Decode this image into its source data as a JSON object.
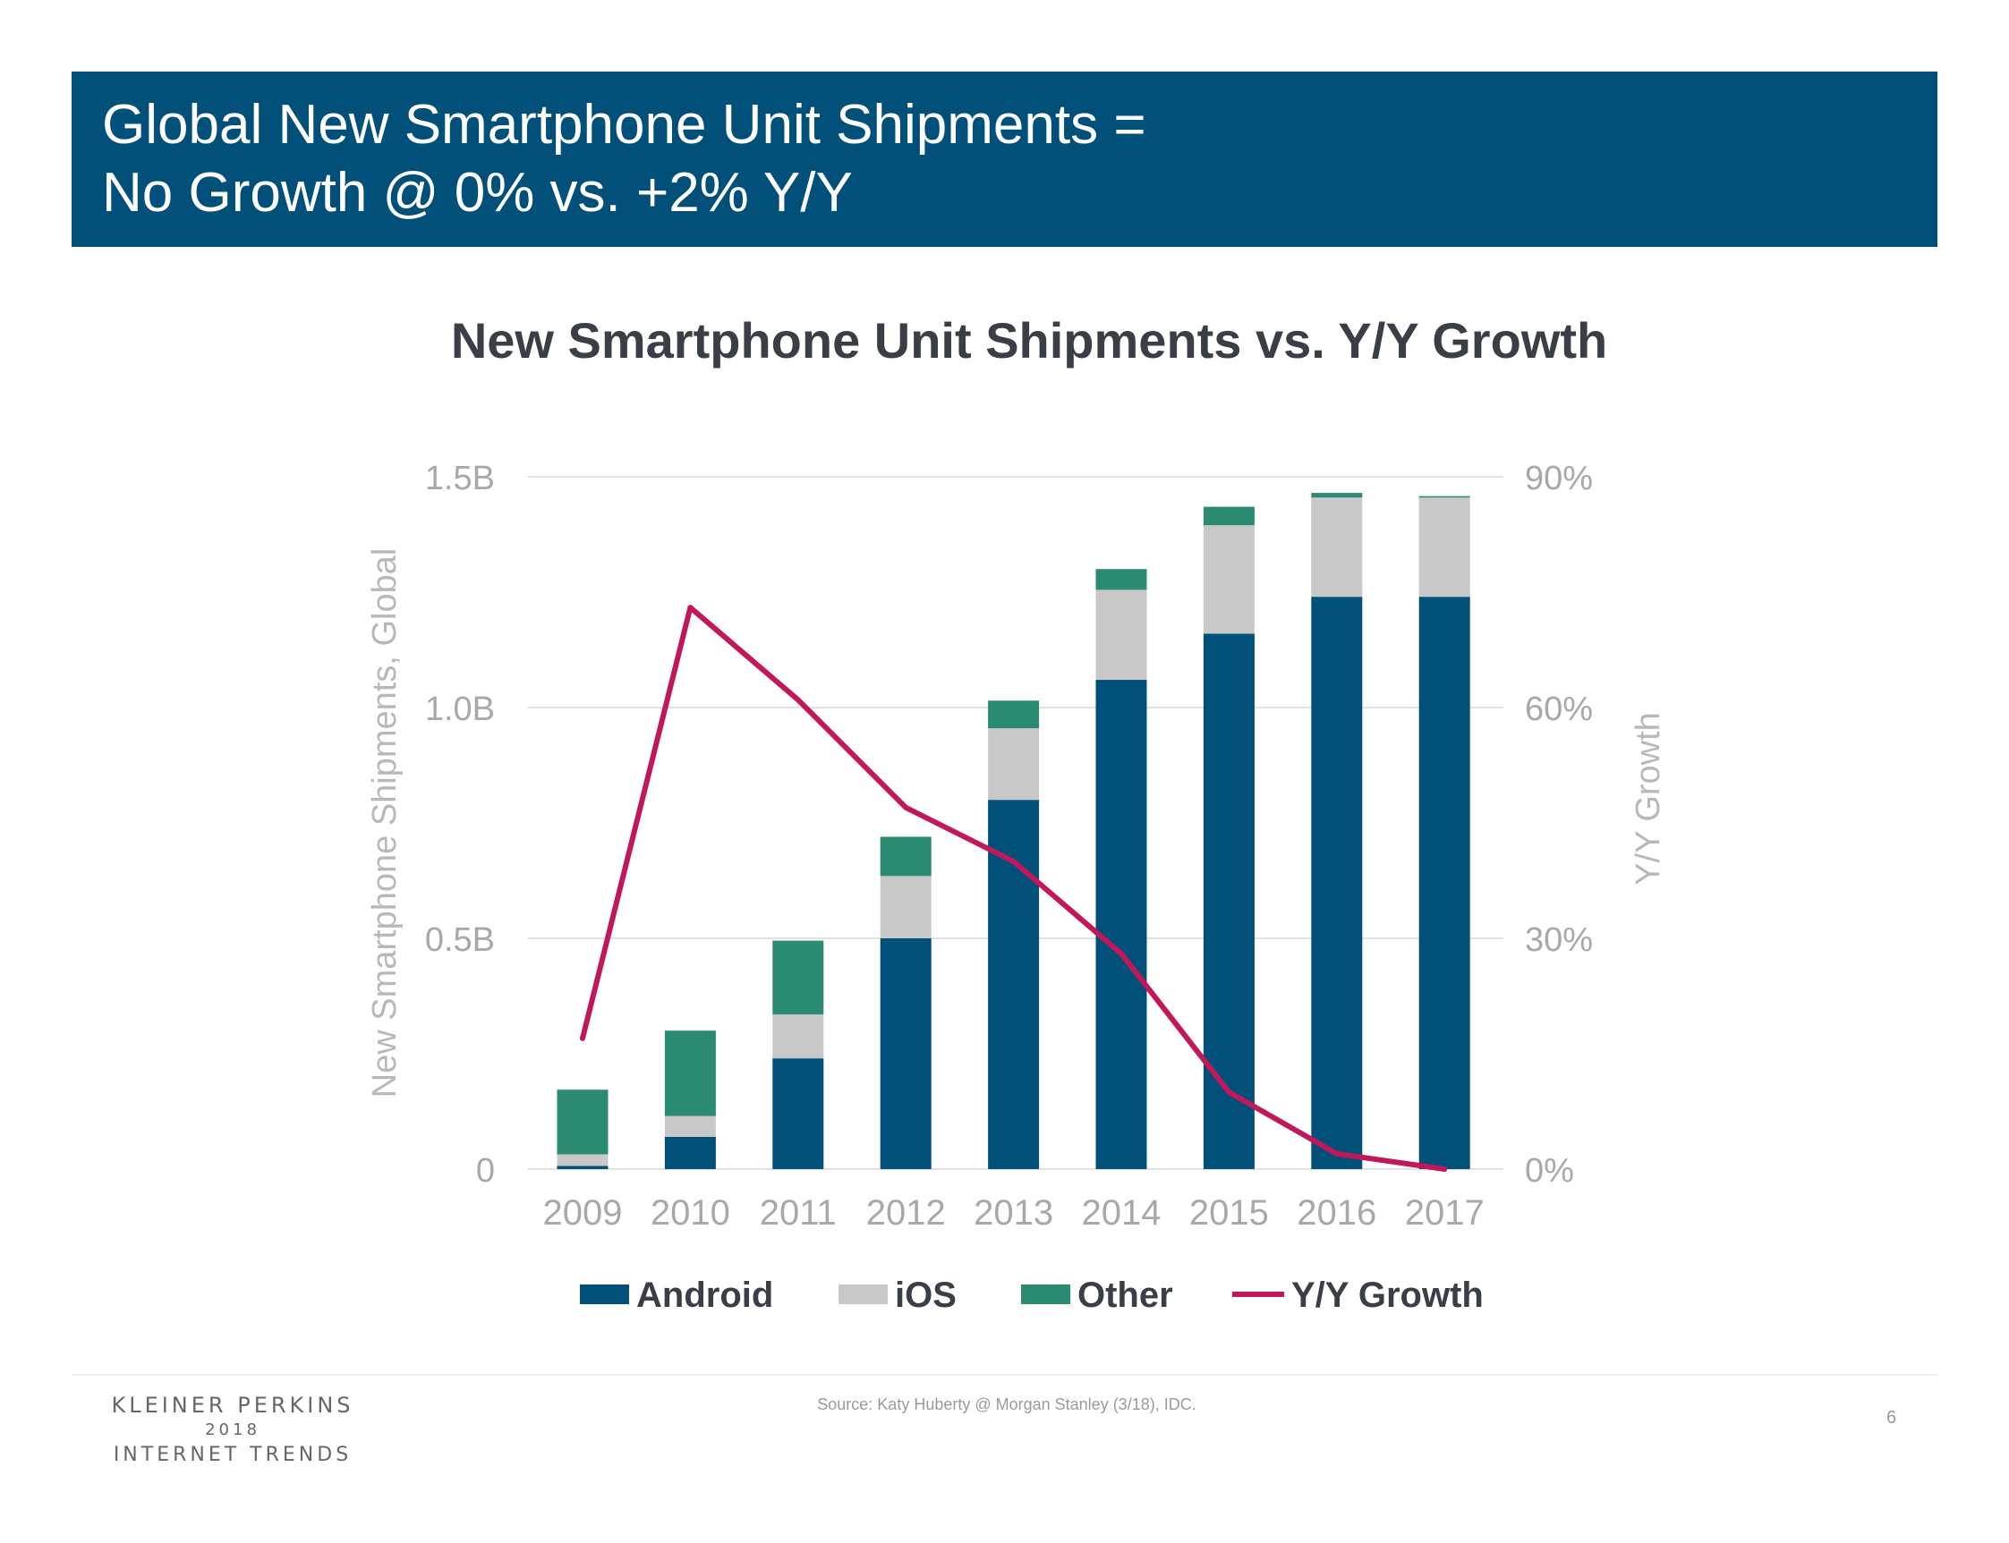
{
  "header": {
    "line1": "Global New Smartphone Unit Shipments =",
    "line2": "No Growth @ 0% vs. +2% Y/Y"
  },
  "colors": {
    "header_bg": "#00507a",
    "android": "#00507a",
    "ios": "#c8c8c8",
    "other": "#2a8a72",
    "growth": "#c2185b"
  },
  "chart_data": {
    "type": "bar",
    "stacked": true,
    "title": "New Smartphone Unit Shipments vs. Y/Y Growth",
    "ylabel": "New Smartphone Shipments, Global",
    "ylabel_right": "Y/Y Growth",
    "categories": [
      "2009",
      "2010",
      "2011",
      "2012",
      "2013",
      "2014",
      "2015",
      "2016",
      "2017"
    ],
    "series": [
      {
        "name": "Android",
        "type": "bar",
        "axis": "left",
        "values": [
          0.007,
          0.07,
          0.24,
          0.5,
          0.8,
          1.06,
          1.16,
          1.24,
          1.24
        ]
      },
      {
        "name": "iOS",
        "type": "bar",
        "axis": "left",
        "values": [
          0.025,
          0.045,
          0.095,
          0.135,
          0.155,
          0.195,
          0.235,
          0.215,
          0.215
        ]
      },
      {
        "name": "Other",
        "type": "bar",
        "axis": "left",
        "values": [
          0.14,
          0.185,
          0.16,
          0.085,
          0.06,
          0.045,
          0.04,
          0.01,
          0.003
        ]
      },
      {
        "name": "Y/Y Growth",
        "type": "line",
        "axis": "right",
        "values": [
          17,
          73,
          61,
          47,
          40,
          28,
          10,
          2,
          0
        ]
      }
    ],
    "ylim": [
      0,
      1.5
    ],
    "yticks": [
      {
        "value": 0,
        "label": "0"
      },
      {
        "value": 0.5,
        "label": "0.5B"
      },
      {
        "value": 1.0,
        "label": "1.0B"
      },
      {
        "value": 1.5,
        "label": "1.5B"
      }
    ],
    "ylim_right": [
      0,
      90
    ],
    "yticks_right": [
      {
        "value": 0,
        "label": "0%"
      },
      {
        "value": 30,
        "label": "30%"
      },
      {
        "value": 60,
        "label": "60%"
      },
      {
        "value": 90,
        "label": "90%"
      }
    ],
    "grid": true,
    "legend": "bottom"
  },
  "footer": {
    "brand_line1": "KLEINER PERKINS",
    "brand_line2": "2018",
    "brand_line3": "INTERNET TRENDS",
    "source": "Source: Katy Huberty @ Morgan Stanley (3/18), IDC.",
    "page_number": "6"
  }
}
